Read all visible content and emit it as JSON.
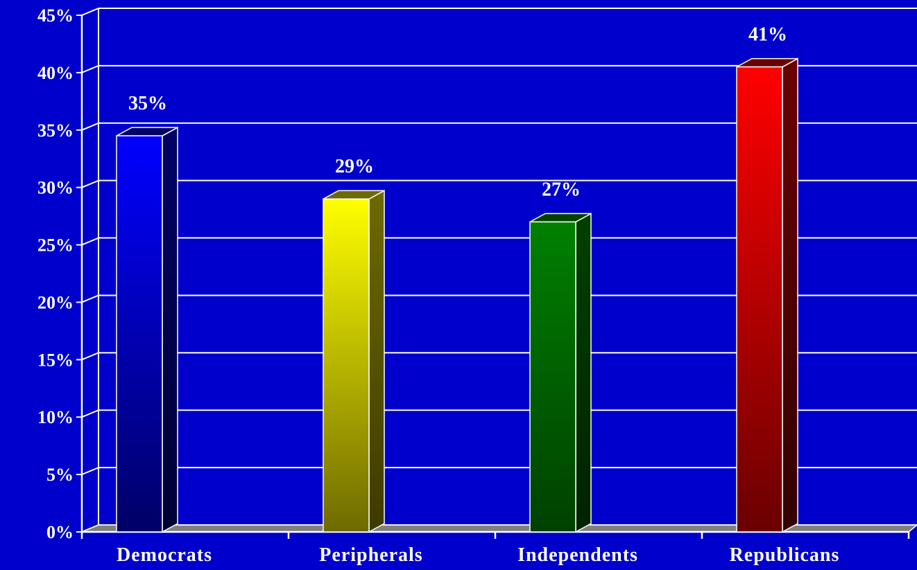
{
  "chart_data": {
    "type": "bar",
    "categories": [
      "Democrats",
      "Peripherals",
      "Independents",
      "Republicans"
    ],
    "values": [
      34.5,
      29,
      27,
      40.5
    ],
    "data_labels": [
      "35%",
      "29%",
      "27%",
      "41%"
    ],
    "title": "",
    "xlabel": "",
    "ylabel": "",
    "ylim": [
      0,
      45
    ],
    "ytick_step": 5,
    "ytick_labels": [
      "0%",
      "5%",
      "10%",
      "15%",
      "20%",
      "25%",
      "30%",
      "35%",
      "40%",
      "45%"
    ],
    "grid": true,
    "legend": "none",
    "three_d": true,
    "bar_colors": [
      {
        "light": "#0000ff",
        "dark": "#000066",
        "side": "#000033"
      },
      {
        "light": "#ffff00",
        "dark": "#6e6a00",
        "side": "#3d3a00"
      },
      {
        "light": "#008000",
        "dark": "#004000",
        "side": "#002200"
      },
      {
        "light": "#ff0000",
        "dark": "#6a0000",
        "side": "#330000"
      }
    ],
    "background_color": "#0000cc",
    "plot_background_color": "#0000cc",
    "floor_color": "#808080",
    "gridline_color": "#ffffff",
    "text_color": "#ffffff"
  }
}
